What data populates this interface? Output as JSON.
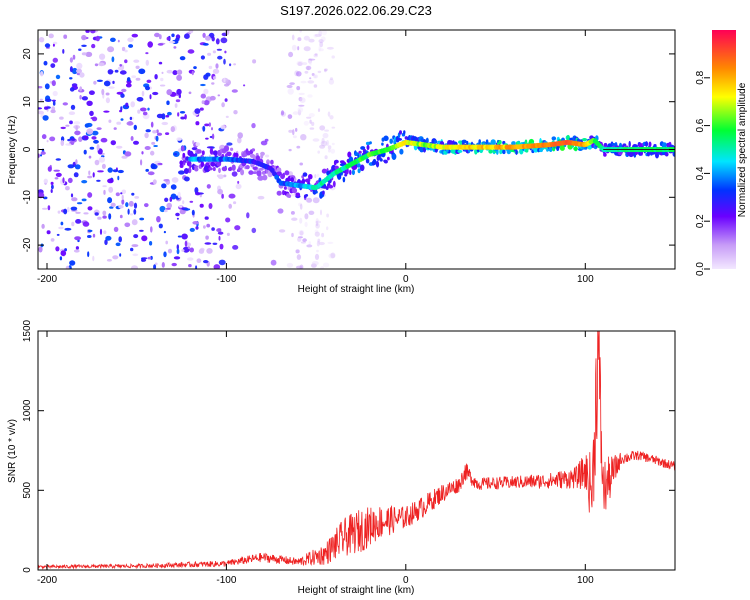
{
  "title": "S197.2026.022.06.29.C23",
  "chart_data": [
    {
      "type": "heatmap",
      "title": "S197.2026.022.06.29.C23",
      "xlabel": "Height of straight line (km)",
      "ylabel": "Frequency (Hz)",
      "xlim": [
        -205,
        150
      ],
      "ylim": [
        -25,
        25
      ],
      "x_ticks": [
        -200,
        -100,
        0,
        100
      ],
      "y_ticks": [
        -20,
        -10,
        0,
        10,
        20
      ],
      "x_tick_labels": [
        "-200",
        "-100",
        "0",
        "100"
      ],
      "y_tick_labels": [
        "-20",
        "-10",
        "0",
        "10",
        "20"
      ],
      "colorbar": {
        "label": "Normalized spectral amplitude",
        "range": [
          0.0,
          1.0
        ],
        "ticks": [
          0.0,
          0.2,
          0.4,
          0.6,
          0.8
        ],
        "tick_labels": [
          "0.0",
          "0.2",
          "0.4",
          "0.6",
          "0.8"
        ]
      },
      "ridge": {
        "x": [
          -120,
          -100,
          -85,
          -75,
          -70,
          -60,
          -50,
          -40,
          -30,
          -20,
          -10,
          0,
          10,
          20,
          40,
          60,
          80,
          90,
          100,
          105,
          110,
          130,
          150
        ],
        "freq": [
          -2,
          -2,
          -2.5,
          -4,
          -7,
          -7.5,
          -8,
          -5,
          -3,
          -1,
          0,
          1.5,
          1,
          0.5,
          0.5,
          0.5,
          1,
          1.5,
          1,
          2,
          0,
          0,
          0
        ],
        "amplitude": [
          0.4,
          0.35,
          0.3,
          0.25,
          0.35,
          0.4,
          0.5,
          0.5,
          0.55,
          0.6,
          0.6,
          0.7,
          0.65,
          0.7,
          0.75,
          0.8,
          0.85,
          0.9,
          0.8,
          0.6,
          0.5,
          0.55,
          0.55
        ]
      },
      "noise_region_x": [
        -205,
        -40
      ]
    },
    {
      "type": "line",
      "xlabel": "Height of straight line (km)",
      "ylabel": "SNR (10 * v/v)",
      "xlim": [
        -205,
        150
      ],
      "ylim": [
        0,
        1500
      ],
      "x_ticks": [
        -200,
        -100,
        0,
        100
      ],
      "y_ticks": [
        0,
        500,
        1000,
        1500
      ],
      "x_tick_labels": [
        "-200",
        "-100",
        "0",
        "100"
      ],
      "y_tick_labels": [
        "0",
        "500",
        "1000",
        "1500"
      ],
      "series": [
        {
          "name": "SNR",
          "color": "#ee2222",
          "envelope_x": [
            -205,
            -150,
            -100,
            -80,
            -60,
            -45,
            -35,
            -25,
            -15,
            0,
            10,
            20,
            30,
            33,
            40,
            60,
            80,
            95,
            100,
            104,
            107,
            110,
            120,
            130,
            150
          ],
          "envelope_y": [
            20,
            25,
            40,
            80,
            50,
            100,
            200,
            250,
            300,
            330,
            400,
            480,
            540,
            620,
            540,
            550,
            560,
            580,
            620,
            500,
            1400,
            500,
            700,
            720,
            650
          ],
          "noise_amp": [
            10,
            12,
            20,
            30,
            25,
            70,
            120,
            140,
            110,
            70,
            70,
            60,
            50,
            60,
            40,
            40,
            50,
            70,
            120,
            250,
            500,
            200,
            40,
            30,
            30
          ]
        }
      ]
    }
  ]
}
